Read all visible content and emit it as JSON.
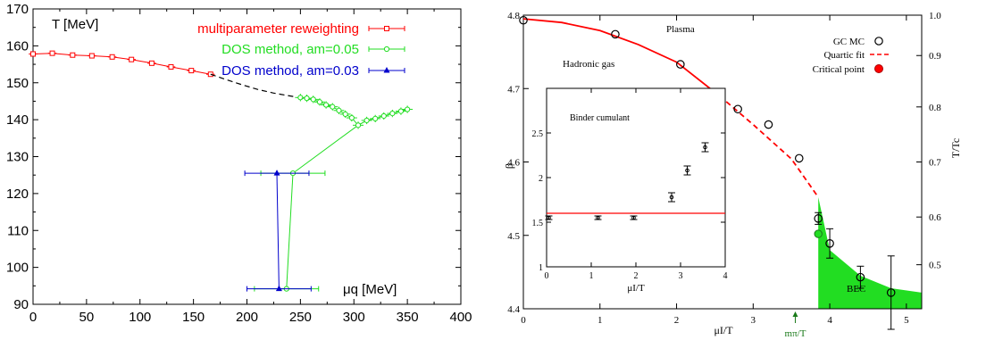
{
  "chart_data": [
    {
      "type": "line",
      "ylabel": "T [MeV]",
      "xlabel": "μq [MeV]",
      "xlim": [
        0,
        400
      ],
      "ylim": [
        90,
        170
      ],
      "xticks": [
        0,
        50,
        100,
        150,
        200,
        250,
        300,
        350,
        400
      ],
      "yticks": [
        90,
        100,
        110,
        120,
        130,
        140,
        150,
        160,
        170
      ],
      "xtick_labels": [
        "0",
        "50",
        "100",
        "150",
        "200",
        "250",
        "300",
        "350",
        "400"
      ],
      "ytick_labels": [
        "90",
        "100",
        "110",
        "120",
        "130",
        "140",
        "150",
        "160",
        "170"
      ],
      "legend_position": "top-right",
      "colors": {
        "red": "#ff0000",
        "green": "#22dd22",
        "blue": "#0000cc",
        "black": "#000000"
      },
      "series": [
        {
          "name": "multiparameter reweighting",
          "color": "red",
          "marker": "square",
          "x": [
            0,
            18,
            37,
            55,
            74,
            92,
            111,
            129,
            148,
            166
          ],
          "y": [
            157.8,
            158.0,
            157.5,
            157.3,
            157.0,
            156.3,
            155.3,
            154.3,
            153.3,
            152.3
          ],
          "xerr": 4,
          "yerr": 0.6,
          "fit": "smooth curve"
        },
        {
          "name": "continuation",
          "color": "black",
          "style": "dashed",
          "x": [
            166,
            180,
            195,
            210,
            225,
            245
          ],
          "y": [
            152.3,
            150.9,
            149.5,
            148.2,
            147.2,
            146.2
          ]
        },
        {
          "name": "DOS method, am=0.05",
          "color": "green",
          "marker": "circle",
          "x": [
            250,
            256,
            262,
            268,
            274,
            280,
            286,
            292,
            298,
            304,
            312,
            320,
            328,
            336,
            344,
            350
          ],
          "y": [
            146.0,
            145.8,
            145.5,
            144.8,
            144.0,
            143.5,
            142.5,
            141.5,
            140.5,
            138.5,
            139.8,
            140.3,
            141.0,
            141.7,
            142.3,
            142.8
          ],
          "yerr": 1.0,
          "xerr": 5,
          "fit": "two curves meeting near μ=300"
        },
        {
          "name": "DOS method, am=0.05 (transition)",
          "color": "green",
          "x": [
            243,
            243,
            237
          ],
          "y": [
            125.5,
            125.5,
            94.2
          ],
          "xerr": 30
        },
        {
          "name": "DOS method, am=0.03",
          "color": "blue",
          "marker": "triangle",
          "x": [
            228,
            230
          ],
          "y": [
            125.5,
            94.2
          ],
          "xerr": 30
        }
      ],
      "legend": [
        {
          "label": "multiparameter reweighting",
          "color": "red"
        },
        {
          "label": "DOS method, am=0.05",
          "color": "green"
        },
        {
          "label": "DOS method, am=0.03",
          "color": "blue"
        }
      ]
    },
    {
      "type": "line",
      "ylabel": "β",
      "xlabel": "μI/T",
      "ylabel_right": "T/Tc",
      "xlim": [
        0,
        5.2
      ],
      "ylim": [
        4.4,
        4.8
      ],
      "xticks": [
        0,
        1,
        2,
        3,
        4,
        5
      ],
      "yticks": [
        4.4,
        4.5,
        4.6,
        4.7,
        4.8
      ],
      "xtick_labels": [
        "0",
        "1",
        "2",
        "3",
        "4",
        "5"
      ],
      "ytick_labels": [
        "4.4",
        "4.5",
        "4.6",
        "4.7",
        "4.8"
      ],
      "right_axis_ticks": {
        "values": [
          4.4,
          4.46,
          4.525,
          4.6,
          4.675,
          4.745,
          4.8
        ],
        "labels": [
          "",
          "0.5",
          "0.6",
          "0.7",
          "0.8",
          "0.9",
          "1.0"
        ]
      },
      "annotations": [
        "Plasma",
        "Hadronic gas",
        "BEC"
      ],
      "marker_label": {
        "text": "mπ/T",
        "x": 3.55
      },
      "legend_position": "top-right",
      "series": [
        {
          "name": "GC MC",
          "marker": "open-circle",
          "x": [
            0.0,
            1.2,
            2.05,
            2.8,
            3.2,
            3.6,
            3.85,
            4.0,
            4.4,
            4.8
          ],
          "y": [
            4.793,
            4.774,
            4.733,
            4.672,
            4.651,
            4.605,
            4.523,
            4.489,
            4.443,
            4.422
          ],
          "yerr": [
            0,
            0,
            0,
            0,
            0,
            0,
            0.008,
            0.02,
            0.015,
            0.05
          ]
        },
        {
          "name": "Quartic fit",
          "style": "red line, dashed beyond critical point",
          "x": [
            0.0,
            0.5,
            1.0,
            1.5,
            2.0,
            2.56,
            3.0,
            3.5,
            3.85
          ],
          "y": [
            4.795,
            4.79,
            4.779,
            4.76,
            4.736,
            4.69,
            4.651,
            4.604,
            4.552
          ]
        },
        {
          "name": "Critical point",
          "marker": "filled-circle",
          "x": [
            2.56
          ],
          "y": [
            4.69
          ]
        },
        {
          "name": "BEC region",
          "style": "green filled area",
          "x": [
            3.85,
            4.0,
            4.4,
            4.8,
            5.2
          ],
          "y": [
            4.552,
            4.48,
            4.445,
            4.428,
            4.422
          ]
        }
      ],
      "legend": [
        {
          "label": "GC MC"
        },
        {
          "label": "Quartic fit"
        },
        {
          "label": "Critical point"
        }
      ],
      "inset": {
        "title": "Binder cumulant",
        "xlabel": "μI/T",
        "xlim": [
          0,
          4
        ],
        "ylim": [
          1,
          3
        ],
        "xticks": [
          0,
          1,
          2,
          3,
          4
        ],
        "yticks": [
          1,
          1.5,
          2,
          2.5
        ],
        "xtick_labels": [
          "0",
          "1",
          "2",
          "3",
          "4"
        ],
        "ytick_labels": [
          "1",
          "1.5",
          "2",
          "2.5"
        ],
        "hline": 1.6,
        "x": [
          0.05,
          1.15,
          1.95,
          2.8,
          3.15,
          3.55
        ],
        "y": [
          1.55,
          1.55,
          1.55,
          1.78,
          2.08,
          2.34
        ]
      }
    }
  ]
}
